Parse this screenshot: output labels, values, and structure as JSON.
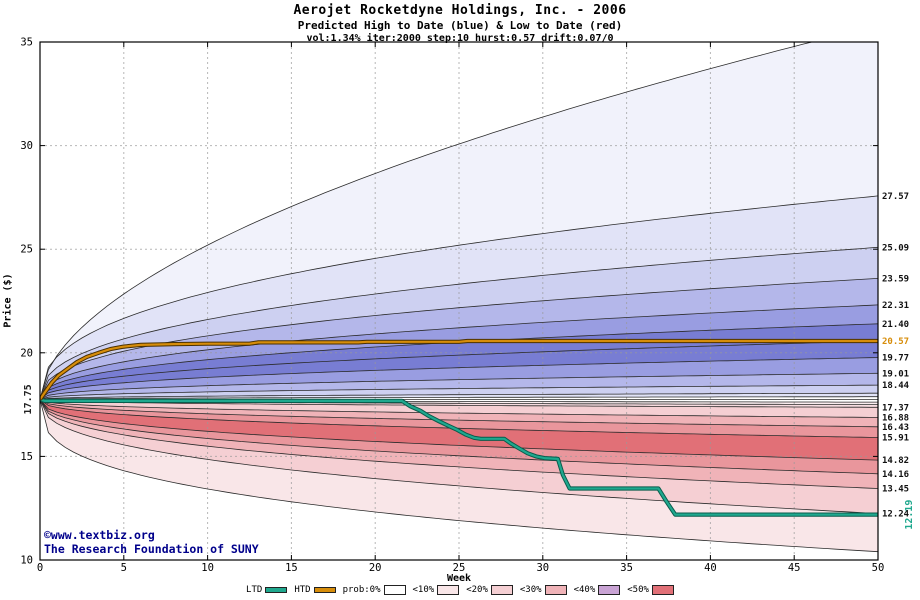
{
  "title": {
    "line1": "Aerojet Rocketdyne Holdings, Inc. - 2006",
    "line2": "Predicted High to Date (blue) &  Low to Date (red)",
    "line3": "vol:1.34% iter:2000 step:10 hurst:0.57 drift:0.07/0"
  },
  "watermark": {
    "line1": "©www.textbiz.org",
    "line2": "The Research Foundation of SUNY",
    "color": "#00008b"
  },
  "chart_data": {
    "type": "area",
    "title": "Aerojet Rocketdyne Holdings, Inc. - 2006",
    "subtitle": "Predicted High to Date (blue) &  Low to Date (red)",
    "params": "vol:1.34% iter:2000 step:10 hurst:0.57 drift:0.07/0",
    "xlabel": "Week",
    "ylabel": "Price ($)",
    "xlim": [
      0,
      50
    ],
    "ylim": [
      10,
      35
    ],
    "xticks": [
      0,
      5,
      10,
      15,
      20,
      25,
      30,
      35,
      40,
      45,
      50
    ],
    "yticks": [
      10,
      15,
      20,
      25,
      30,
      35
    ],
    "grid": true,
    "legend_position": "bottom",
    "start_price": 17.75,
    "start_label": "17.75",
    "htd": {
      "name": "HTD",
      "description": "High to Date",
      "color": "#d78d0a",
      "final": 20.57,
      "final_label": "20.57",
      "points": [
        [
          0,
          17.75
        ],
        [
          0.3,
          18.1
        ],
        [
          0.7,
          18.55
        ],
        [
          1.1,
          18.9
        ],
        [
          1.6,
          19.2
        ],
        [
          2.2,
          19.55
        ],
        [
          2.8,
          19.8
        ],
        [
          3.5,
          20.0
        ],
        [
          4.2,
          20.18
        ],
        [
          5,
          20.3
        ],
        [
          6,
          20.38
        ],
        [
          8,
          20.42
        ],
        [
          10,
          20.44
        ],
        [
          12.5,
          20.44
        ],
        [
          13,
          20.5
        ],
        [
          19,
          20.5
        ],
        [
          19.5,
          20.53
        ],
        [
          25,
          20.53
        ],
        [
          25.5,
          20.57
        ],
        [
          50,
          20.57
        ]
      ]
    },
    "ltd": {
      "name": "LTD",
      "description": "Low to Date",
      "color": "#1fa88e",
      "final": 12.19,
      "final_label": "12.19",
      "points": [
        [
          0,
          17.75
        ],
        [
          0.3,
          17.68
        ],
        [
          21.6,
          17.68
        ],
        [
          22.1,
          17.42
        ],
        [
          22.7,
          17.2
        ],
        [
          23.2,
          16.95
        ],
        [
          23.8,
          16.7
        ],
        [
          24.3,
          16.5
        ],
        [
          24.9,
          16.28
        ],
        [
          25.4,
          16.05
        ],
        [
          25.9,
          15.9
        ],
        [
          26.3,
          15.85
        ],
        [
          27.7,
          15.85
        ],
        [
          28.1,
          15.62
        ],
        [
          28.6,
          15.38
        ],
        [
          29.1,
          15.15
        ],
        [
          29.6,
          15.0
        ],
        [
          30.1,
          14.92
        ],
        [
          30.9,
          14.88
        ],
        [
          31.2,
          14.1
        ],
        [
          31.6,
          13.45
        ],
        [
          36.9,
          13.45
        ],
        [
          37.4,
          12.8
        ],
        [
          37.9,
          12.19
        ],
        [
          50,
          12.19
        ]
      ]
    },
    "lines": [
      {
        "end": 35.8,
        "p": 0.55
      },
      {
        "end": 27.57,
        "p": 0.4,
        "label": "27.57"
      },
      {
        "end": 25.09,
        "p": 0.4,
        "label": "25.09"
      },
      {
        "end": 23.59,
        "p": 0.4,
        "label": "23.59"
      },
      {
        "end": 22.31,
        "p": 0.4,
        "label": "22.31"
      },
      {
        "end": 21.4,
        "p": 0.4,
        "label": "21.40"
      },
      {
        "end": 20.57,
        "p": 0.4,
        "label": "20.57",
        "label_color": "#d78d0a"
      },
      {
        "end": 19.77,
        "p": 0.4,
        "label": "19.77"
      },
      {
        "end": 19.01,
        "p": 0.4,
        "label": "19.01"
      },
      {
        "end": 18.44,
        "p": 0.4,
        "label": "18.44"
      },
      {
        "end": 18.05,
        "p": 0.4
      },
      {
        "end": 17.88,
        "p": 0.4
      },
      {
        "end": 17.75,
        "p": 1
      },
      {
        "end": 17.62,
        "p": 0.4
      },
      {
        "end": 17.5,
        "p": 0.4
      },
      {
        "end": 17.37,
        "p": 0.4,
        "label": "17.37"
      },
      {
        "end": 16.88,
        "p": 0.4,
        "label": "16.88"
      },
      {
        "end": 16.43,
        "p": 0.4,
        "label": "16.43"
      },
      {
        "end": 15.91,
        "p": 0.4,
        "label": "15.91"
      },
      {
        "end": 14.82,
        "p": 0.4,
        "label": "14.82"
      },
      {
        "end": 14.16,
        "p": 0.4,
        "label": "14.16"
      },
      {
        "end": 13.45,
        "p": 0.4,
        "label": "13.45"
      },
      {
        "end": 12.24,
        "p": 0.4,
        "label": "12.24"
      },
      {
        "end": 10.4,
        "p": 0.33
      }
    ],
    "bands": [
      {
        "hi": {
          "end": 35.8,
          "p": 0.55
        },
        "lo": {
          "end": 27.57,
          "p": 0.4
        },
        "color": "#f1f2fb"
      },
      {
        "hi": {
          "end": 27.57,
          "p": 0.4
        },
        "lo": {
          "end": 25.09,
          "p": 0.4
        },
        "color": "#e1e3f7"
      },
      {
        "hi": {
          "end": 25.09,
          "p": 0.4
        },
        "lo": {
          "end": 23.59,
          "p": 0.4
        },
        "color": "#cdd0f1"
      },
      {
        "hi": {
          "end": 23.59,
          "p": 0.4
        },
        "lo": {
          "end": 22.31,
          "p": 0.4
        },
        "color": "#b4b7ea"
      },
      {
        "hi": {
          "end": 22.31,
          "p": 0.4
        },
        "lo": {
          "end": 21.4,
          "p": 0.4
        },
        "color": "#999de1"
      },
      {
        "hi": {
          "end": 21.4,
          "p": 0.4
        },
        "lo": {
          "end": 20.57,
          "p": 0.4
        },
        "color": "#787dd3"
      },
      {
        "hi": {
          "end": 20.57,
          "p": 0.4
        },
        "lo": {
          "end": 19.77,
          "p": 0.4
        },
        "color": "#787dd3"
      },
      {
        "hi": {
          "end": 19.77,
          "p": 0.4
        },
        "lo": {
          "end": 19.01,
          "p": 0.4
        },
        "color": "#999de1"
      },
      {
        "hi": {
          "end": 19.01,
          "p": 0.4
        },
        "lo": {
          "end": 18.44,
          "p": 0.4
        },
        "color": "#b4b7ea"
      },
      {
        "hi": {
          "end": 18.44,
          "p": 0.4
        },
        "lo": {
          "end": 18.05,
          "p": 0.4
        },
        "color": "#cdd0f1"
      },
      {
        "hi": {
          "end": 18.05,
          "p": 0.4
        },
        "lo": {
          "end": 17.88,
          "p": 0.4
        },
        "color": "#e1e3f7"
      },
      {
        "hi": {
          "end": 17.88,
          "p": 0.4
        },
        "lo": {
          "end": 17.75,
          "p": 1
        },
        "color": "#ffffff"
      },
      {
        "hi": {
          "end": 17.75,
          "p": 1
        },
        "lo": {
          "end": 17.62,
          "p": 0.4
        },
        "color": "#ffffff"
      },
      {
        "hi": {
          "end": 17.62,
          "p": 0.4
        },
        "lo": {
          "end": 17.5,
          "p": 0.4
        },
        "color": "#fbeef0"
      },
      {
        "hi": {
          "end": 17.5,
          "p": 0.4
        },
        "lo": {
          "end": 17.37,
          "p": 0.4
        },
        "color": "#f8dde1"
      },
      {
        "hi": {
          "end": 17.37,
          "p": 0.4
        },
        "lo": {
          "end": 16.88,
          "p": 0.4
        },
        "color": "#f5cfd3"
      },
      {
        "hi": {
          "end": 16.88,
          "p": 0.4
        },
        "lo": {
          "end": 16.43,
          "p": 0.4
        },
        "color": "#f0b3b8"
      },
      {
        "hi": {
          "end": 16.43,
          "p": 0.4
        },
        "lo": {
          "end": 15.91,
          "p": 0.4
        },
        "color": "#e9969c"
      },
      {
        "hi": {
          "end": 15.91,
          "p": 0.4
        },
        "lo": {
          "end": 14.82,
          "p": 0.4
        },
        "color": "#e17077"
      },
      {
        "hi": {
          "end": 14.82,
          "p": 0.4
        },
        "lo": {
          "end": 14.16,
          "p": 0.4
        },
        "color": "#e9969c"
      },
      {
        "hi": {
          "end": 14.16,
          "p": 0.4
        },
        "lo": {
          "end": 13.45,
          "p": 0.4
        },
        "color": "#f0b3b8"
      },
      {
        "hi": {
          "end": 13.45,
          "p": 0.4
        },
        "lo": {
          "end": 12.24,
          "p": 0.4
        },
        "color": "#f5cfd3"
      },
      {
        "hi": {
          "end": 12.24,
          "p": 0.4
        },
        "lo": {
          "end": 10.4,
          "p": 0.33
        },
        "color": "#f9e6e8"
      }
    ],
    "legend": [
      {
        "label": "LTD",
        "type": "line",
        "color": "#1fa88e"
      },
      {
        "label": "HTD",
        "type": "line",
        "color": "#d78d0a"
      },
      {
        "label": "prob:0%",
        "type": "box",
        "color": "#ffffff"
      },
      {
        "label": "<10%",
        "type": "box",
        "color": "#f9e6e8"
      },
      {
        "label": "<20%",
        "type": "box",
        "color": "#f5cfd3"
      },
      {
        "label": "<30%",
        "type": "box",
        "color": "#f0b3b8"
      },
      {
        "label": "<40%",
        "type": "box",
        "color": "#c9a3d4"
      },
      {
        "label": "<50%",
        "type": "box",
        "color": "#e17077"
      }
    ]
  }
}
